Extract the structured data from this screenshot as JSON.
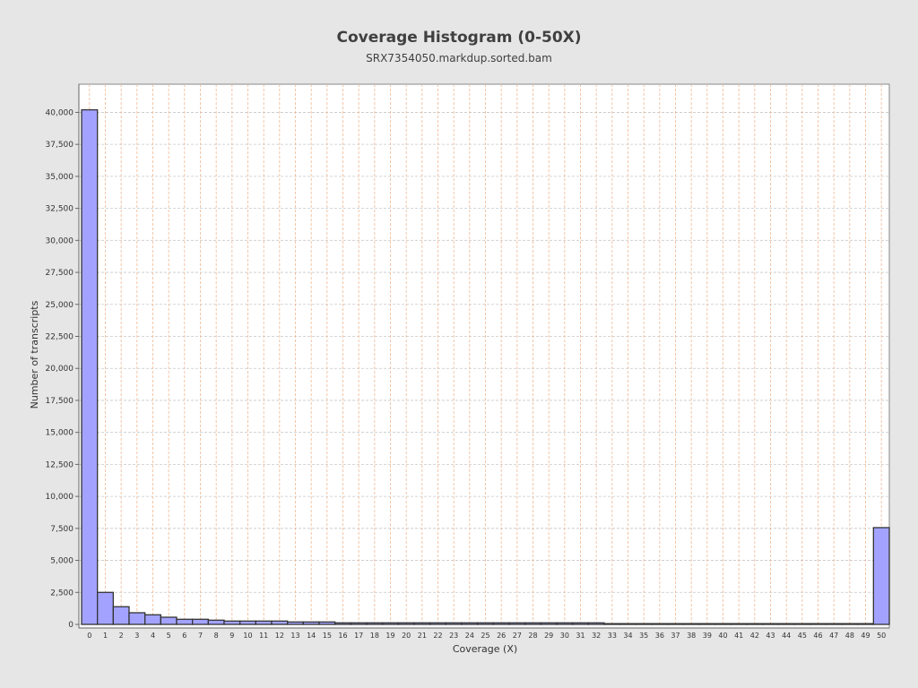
{
  "chart_data": {
    "type": "bar",
    "title": "Coverage Histogram (0-50X)",
    "subtitle": "SRX7354050.markdup.sorted.bam",
    "xlabel": "Coverage (X)",
    "ylabel": "Number of transcripts",
    "categories": [
      "0",
      "1",
      "2",
      "3",
      "4",
      "5",
      "6",
      "7",
      "8",
      "9",
      "10",
      "11",
      "12",
      "13",
      "14",
      "15",
      "16",
      "17",
      "18",
      "19",
      "20",
      "21",
      "22",
      "23",
      "24",
      "25",
      "26",
      "27",
      "28",
      "29",
      "30",
      "31",
      "32",
      "33",
      "34",
      "35",
      "36",
      "37",
      "38",
      "39",
      "40",
      "41",
      "42",
      "43",
      "44",
      "45",
      "46",
      "47",
      "48",
      "49",
      "50"
    ],
    "values": [
      40200,
      2500,
      1380,
      910,
      750,
      560,
      400,
      400,
      330,
      260,
      260,
      260,
      260,
      190,
      190,
      190,
      120,
      120,
      120,
      120,
      120,
      120,
      120,
      120,
      120,
      120,
      120,
      120,
      120,
      120,
      120,
      120,
      120,
      60,
      60,
      60,
      60,
      60,
      60,
      60,
      60,
      60,
      60,
      60,
      60,
      60,
      60,
      60,
      60,
      60,
      7560
    ],
    "ylim": [
      0,
      42200
    ],
    "yticks": [
      "0",
      "2,500",
      "5,000",
      "7,500",
      "10,000",
      "12,500",
      "15,000",
      "17,500",
      "20,000",
      "22,500",
      "25,000",
      "27,500",
      "30,000",
      "32,500",
      "35,000",
      "37,500",
      "40,000"
    ],
    "grid": true,
    "colors": {
      "bar": "#a3a3ff",
      "bar_edge": "#333333",
      "grid_major": "#c8c8c8",
      "grid_minor": "#f0b890",
      "background": "#ffffff"
    }
  }
}
